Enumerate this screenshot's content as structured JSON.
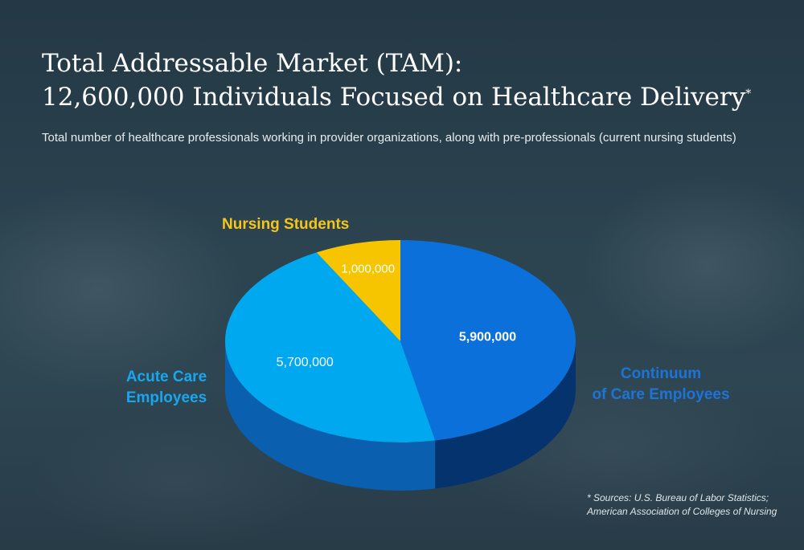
{
  "header": {
    "title_line_1": "Total Addressable Market (TAM):",
    "title_line_2": "12,600,000 Individuals Focused on Healthcare Delivery",
    "title_marker": "*",
    "subtitle": "Total number of healthcare professionals working in provider organizations, along with pre-professionals (current nursing students)"
  },
  "chart_data": {
    "type": "pie",
    "style": "3d",
    "title": "12,600,000 Individuals Focused on Healthcare Delivery",
    "slices": [
      {
        "label": "Continuum of Care Employees",
        "label_lines": [
          "Continuum",
          "of Care Employees"
        ],
        "value": 5900000,
        "value_label": "5,900,000",
        "color": "#0b70d9",
        "side_color": "#05336e"
      },
      {
        "label": "Acute Care Employees",
        "label_lines": [
          "Acute Care",
          "Employees"
        ],
        "value": 5700000,
        "value_label": "5,700,000",
        "color": "#00a8ef",
        "side_color": "#0a5fae"
      },
      {
        "label": "Nursing Students",
        "label_lines": [
          "Nursing Students"
        ],
        "value": 1000000,
        "value_label": "1,000,000",
        "color": "#f6c500",
        "side_color": "#c49a00"
      }
    ]
  },
  "footnote": {
    "line_1": "* Sources: U.S. Bureau of Labor Statistics;",
    "line_2": "American Association of Colleges of Nursing"
  }
}
